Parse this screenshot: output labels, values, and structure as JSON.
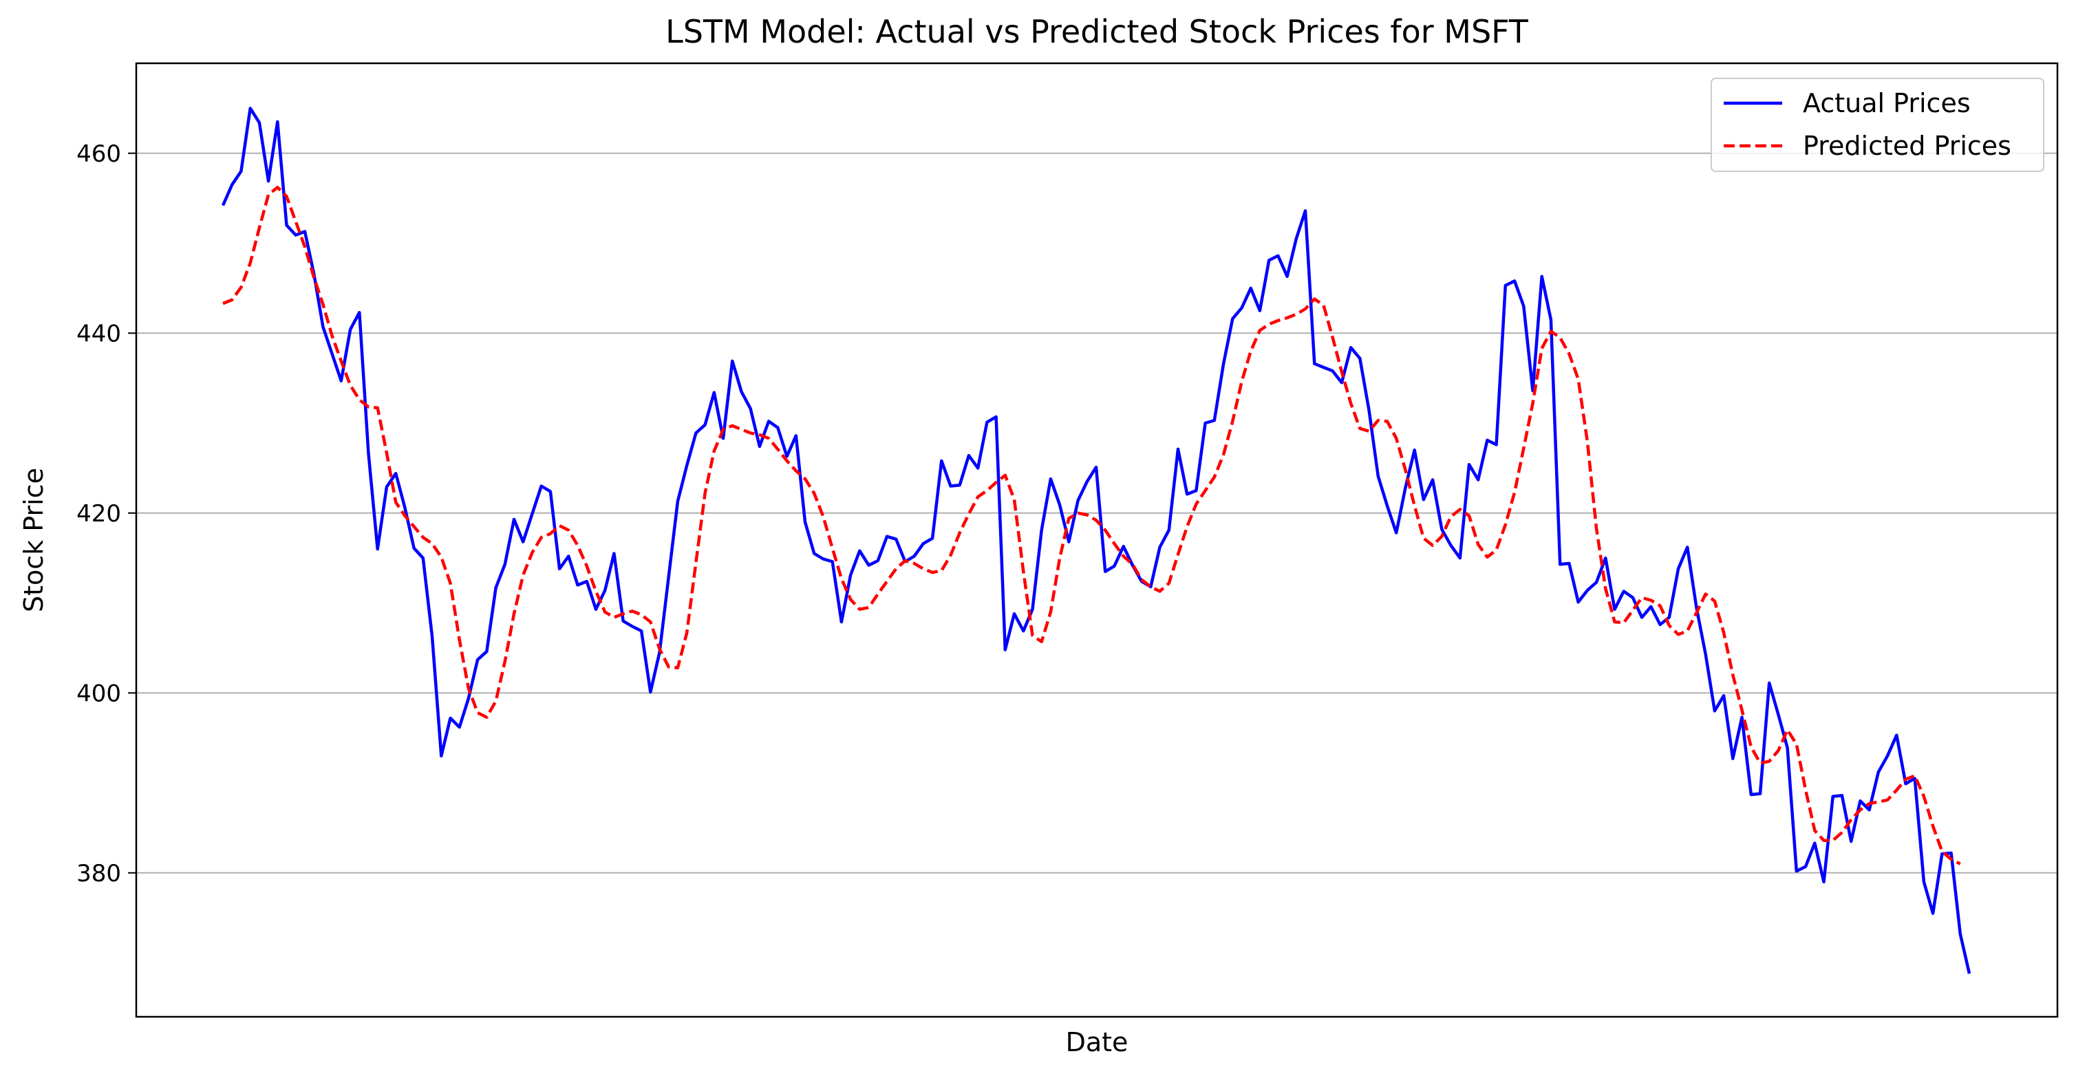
{
  "chart_data": {
    "type": "line",
    "title": "LSTM Model: Actual vs Predicted Stock Prices for MSFT",
    "xlabel": "Date",
    "ylabel": "Stock Price",
    "ylim": [
      364,
      470
    ],
    "y_ticks": [
      380,
      400,
      420,
      440,
      460
    ],
    "x_ticks_shown": false,
    "grid": "horizontal",
    "legend_position": "top-right",
    "series": [
      {
        "name": "Actual Prices",
        "color": "#0000ff",
        "style": "solid",
        "values": [
          454.2,
          456.5,
          458.0,
          465.0,
          463.4,
          456.9,
          463.5,
          452.0,
          450.9,
          451.3,
          446.6,
          440.7,
          437.7,
          434.7,
          440.4,
          442.3,
          426.6,
          416.0,
          422.9,
          424.4,
          420.6,
          416.1,
          415.0,
          406.3,
          393.0,
          397.2,
          396.2,
          399.4,
          403.7,
          404.6,
          411.7,
          414.3,
          419.3,
          416.8,
          419.9,
          423.0,
          422.4,
          413.8,
          415.2,
          412.0,
          412.4,
          409.3,
          411.4,
          415.5,
          408.0,
          407.4,
          406.9,
          400.1,
          404.5,
          412.9,
          421.3,
          425.3,
          428.9,
          429.8,
          433.4,
          428.3,
          436.9,
          433.5,
          431.6,
          427.4,
          430.2,
          429.5,
          426.3,
          428.6,
          419.0,
          415.5,
          414.9,
          414.6,
          407.9,
          413.1,
          415.8,
          414.2,
          414.7,
          417.4,
          417.1,
          414.6,
          415.2,
          416.6,
          417.2,
          425.8,
          423.0,
          423.1,
          426.4,
          425.0,
          430.1,
          430.7,
          404.8,
          408.8,
          406.9,
          409.3,
          418.1,
          423.8,
          420.9,
          416.8,
          421.4,
          423.5,
          425.1,
          413.5,
          414.1,
          416.3,
          414.2,
          412.4,
          411.8,
          416.2,
          418.1,
          427.1,
          422.1,
          422.5,
          430.0,
          430.3,
          436.6,
          441.6,
          442.8,
          445.0,
          442.5,
          448.1,
          448.6,
          446.3,
          450.5,
          453.6,
          436.6,
          436.2,
          435.8,
          434.5,
          438.4,
          437.2,
          431.4,
          424.1,
          420.8,
          417.8,
          422.8,
          427.0,
          421.5,
          423.7,
          418.2,
          416.4,
          415.0,
          425.4,
          423.7,
          428.1,
          427.6,
          445.3,
          445.8,
          443.0,
          433.6,
          446.3,
          441.5,
          414.3,
          414.4,
          410.1,
          411.4,
          412.3,
          415.0,
          409.3,
          411.3,
          410.6,
          408.4,
          409.6,
          407.6,
          408.4,
          413.8,
          416.2,
          409.5,
          404.3,
          398.0,
          399.7,
          392.7,
          397.3,
          388.7,
          388.8,
          401.1,
          397.6,
          393.9,
          380.2,
          380.7,
          383.3,
          379.0,
          388.5,
          388.6,
          383.5,
          388.0,
          387.0,
          391.2,
          393.0,
          395.3,
          389.9,
          390.5,
          379.0,
          375.5,
          382.1,
          382.2,
          373.2,
          368.8
        ]
      },
      {
        "name": "Predicted Prices",
        "color": "#ff0000",
        "style": "dashed",
        "values": [
          443.3,
          443.7,
          445.1,
          447.8,
          451.7,
          455.4,
          456.2,
          455.2,
          452.4,
          449.6,
          446.2,
          443.2,
          439.7,
          436.9,
          434.2,
          432.6,
          431.8,
          431.7,
          426.7,
          421.2,
          419.7,
          418.5,
          417.3,
          416.6,
          415.1,
          412.2,
          405.9,
          400.5,
          397.8,
          397.3,
          399.1,
          403.5,
          408.8,
          413.1,
          415.6,
          417.3,
          417.7,
          418.6,
          418.1,
          416.4,
          414.1,
          411.3,
          409.0,
          408.4,
          408.8,
          409.1,
          408.7,
          407.9,
          404.9,
          402.9,
          402.8,
          406.7,
          414.5,
          422.2,
          426.9,
          429.3,
          429.7,
          429.3,
          428.9,
          428.7,
          428.3,
          427.1,
          425.8,
          424.7,
          423.8,
          422.2,
          419.6,
          416.1,
          412.7,
          410.4,
          409.3,
          409.5,
          411.0,
          412.4,
          413.8,
          414.7,
          414.4,
          413.8,
          413.4,
          413.6,
          415.3,
          417.8,
          419.9,
          421.8,
          422.5,
          423.4,
          424.2,
          421.5,
          413.5,
          406.4,
          405.7,
          409.0,
          415.0,
          419.4,
          420.0,
          419.8,
          419.2,
          418.1,
          416.6,
          415.2,
          414.3,
          412.6,
          411.8,
          411.3,
          412.2,
          415.4,
          418.5,
          421.0,
          422.5,
          424.0,
          426.5,
          430.2,
          434.6,
          438.0,
          440.3,
          441.0,
          441.4,
          441.7,
          442.1,
          442.7,
          443.8,
          443.1,
          439.5,
          435.7,
          432.2,
          429.4,
          429.1,
          430.3,
          430.2,
          428.3,
          424.8,
          420.8,
          417.2,
          416.4,
          417.4,
          419.6,
          420.4,
          419.7,
          416.5,
          415.1,
          415.9,
          418.7,
          422.3,
          427.2,
          432.2,
          438.3,
          440.2,
          439.5,
          437.7,
          434.9,
          428.0,
          418.3,
          411.6,
          407.9,
          407.8,
          409.2,
          410.6,
          410.3,
          409.7,
          407.5,
          406.5,
          406.9,
          408.9,
          411.0,
          410.2,
          406.7,
          402.0,
          398.1,
          394.0,
          392.2,
          392.4,
          393.6,
          395.9,
          394.3,
          389.2,
          384.7,
          383.6,
          383.6,
          384.5,
          385.9,
          387.0,
          387.7,
          387.9,
          388.1,
          389.2,
          390.4,
          390.8,
          388.5,
          385.2,
          382.4,
          381.5,
          381.0
        ]
      }
    ]
  }
}
